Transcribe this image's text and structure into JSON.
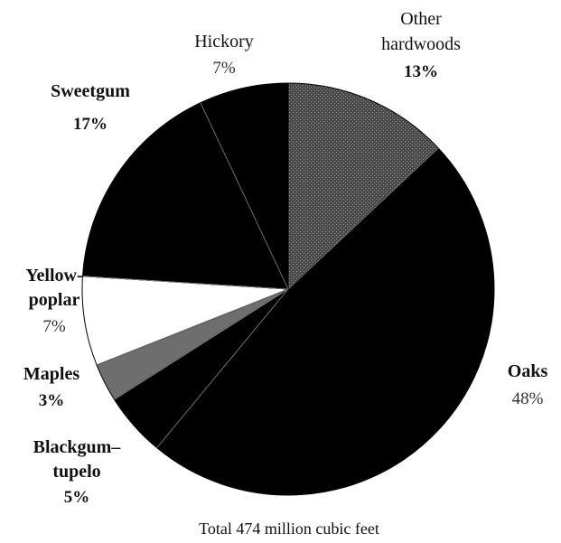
{
  "chart_data": {
    "type": "pie",
    "title": "",
    "caption": "Total 474 million cubic feet",
    "slices": [
      {
        "label": "Other hardwoods",
        "label_lines": [
          "Other",
          "hardwoods"
        ],
        "value_label": "13%",
        "value": 13,
        "color": "#5a5a5a"
      },
      {
        "label": "Oaks",
        "label_lines": [
          "Oaks"
        ],
        "value_label": "48%",
        "value": 48,
        "color": "#000000"
      },
      {
        "label": "Blackgum–tupelo",
        "label_lines": [
          "Blackgum–",
          "tupelo"
        ],
        "value_label": "5%",
        "value": 5,
        "color": "#000000"
      },
      {
        "label": "Maples",
        "label_lines": [
          "Maples"
        ],
        "value_label": "3%",
        "value": 3,
        "color": "#6e6e6e"
      },
      {
        "label": "Yellow-poplar",
        "label_lines": [
          "Yellow-",
          "poplar"
        ],
        "value_label": "7%",
        "value": 7,
        "color": "#ffffff"
      },
      {
        "label": "Sweetgum",
        "label_lines": [
          "Sweetgum"
        ],
        "value_label": "17%",
        "value": 17,
        "color": "#000000"
      },
      {
        "label": "Hickory",
        "label_lines": [
          "Hickory"
        ],
        "value_label": "7%",
        "value": 7,
        "color": "#000000"
      }
    ]
  }
}
